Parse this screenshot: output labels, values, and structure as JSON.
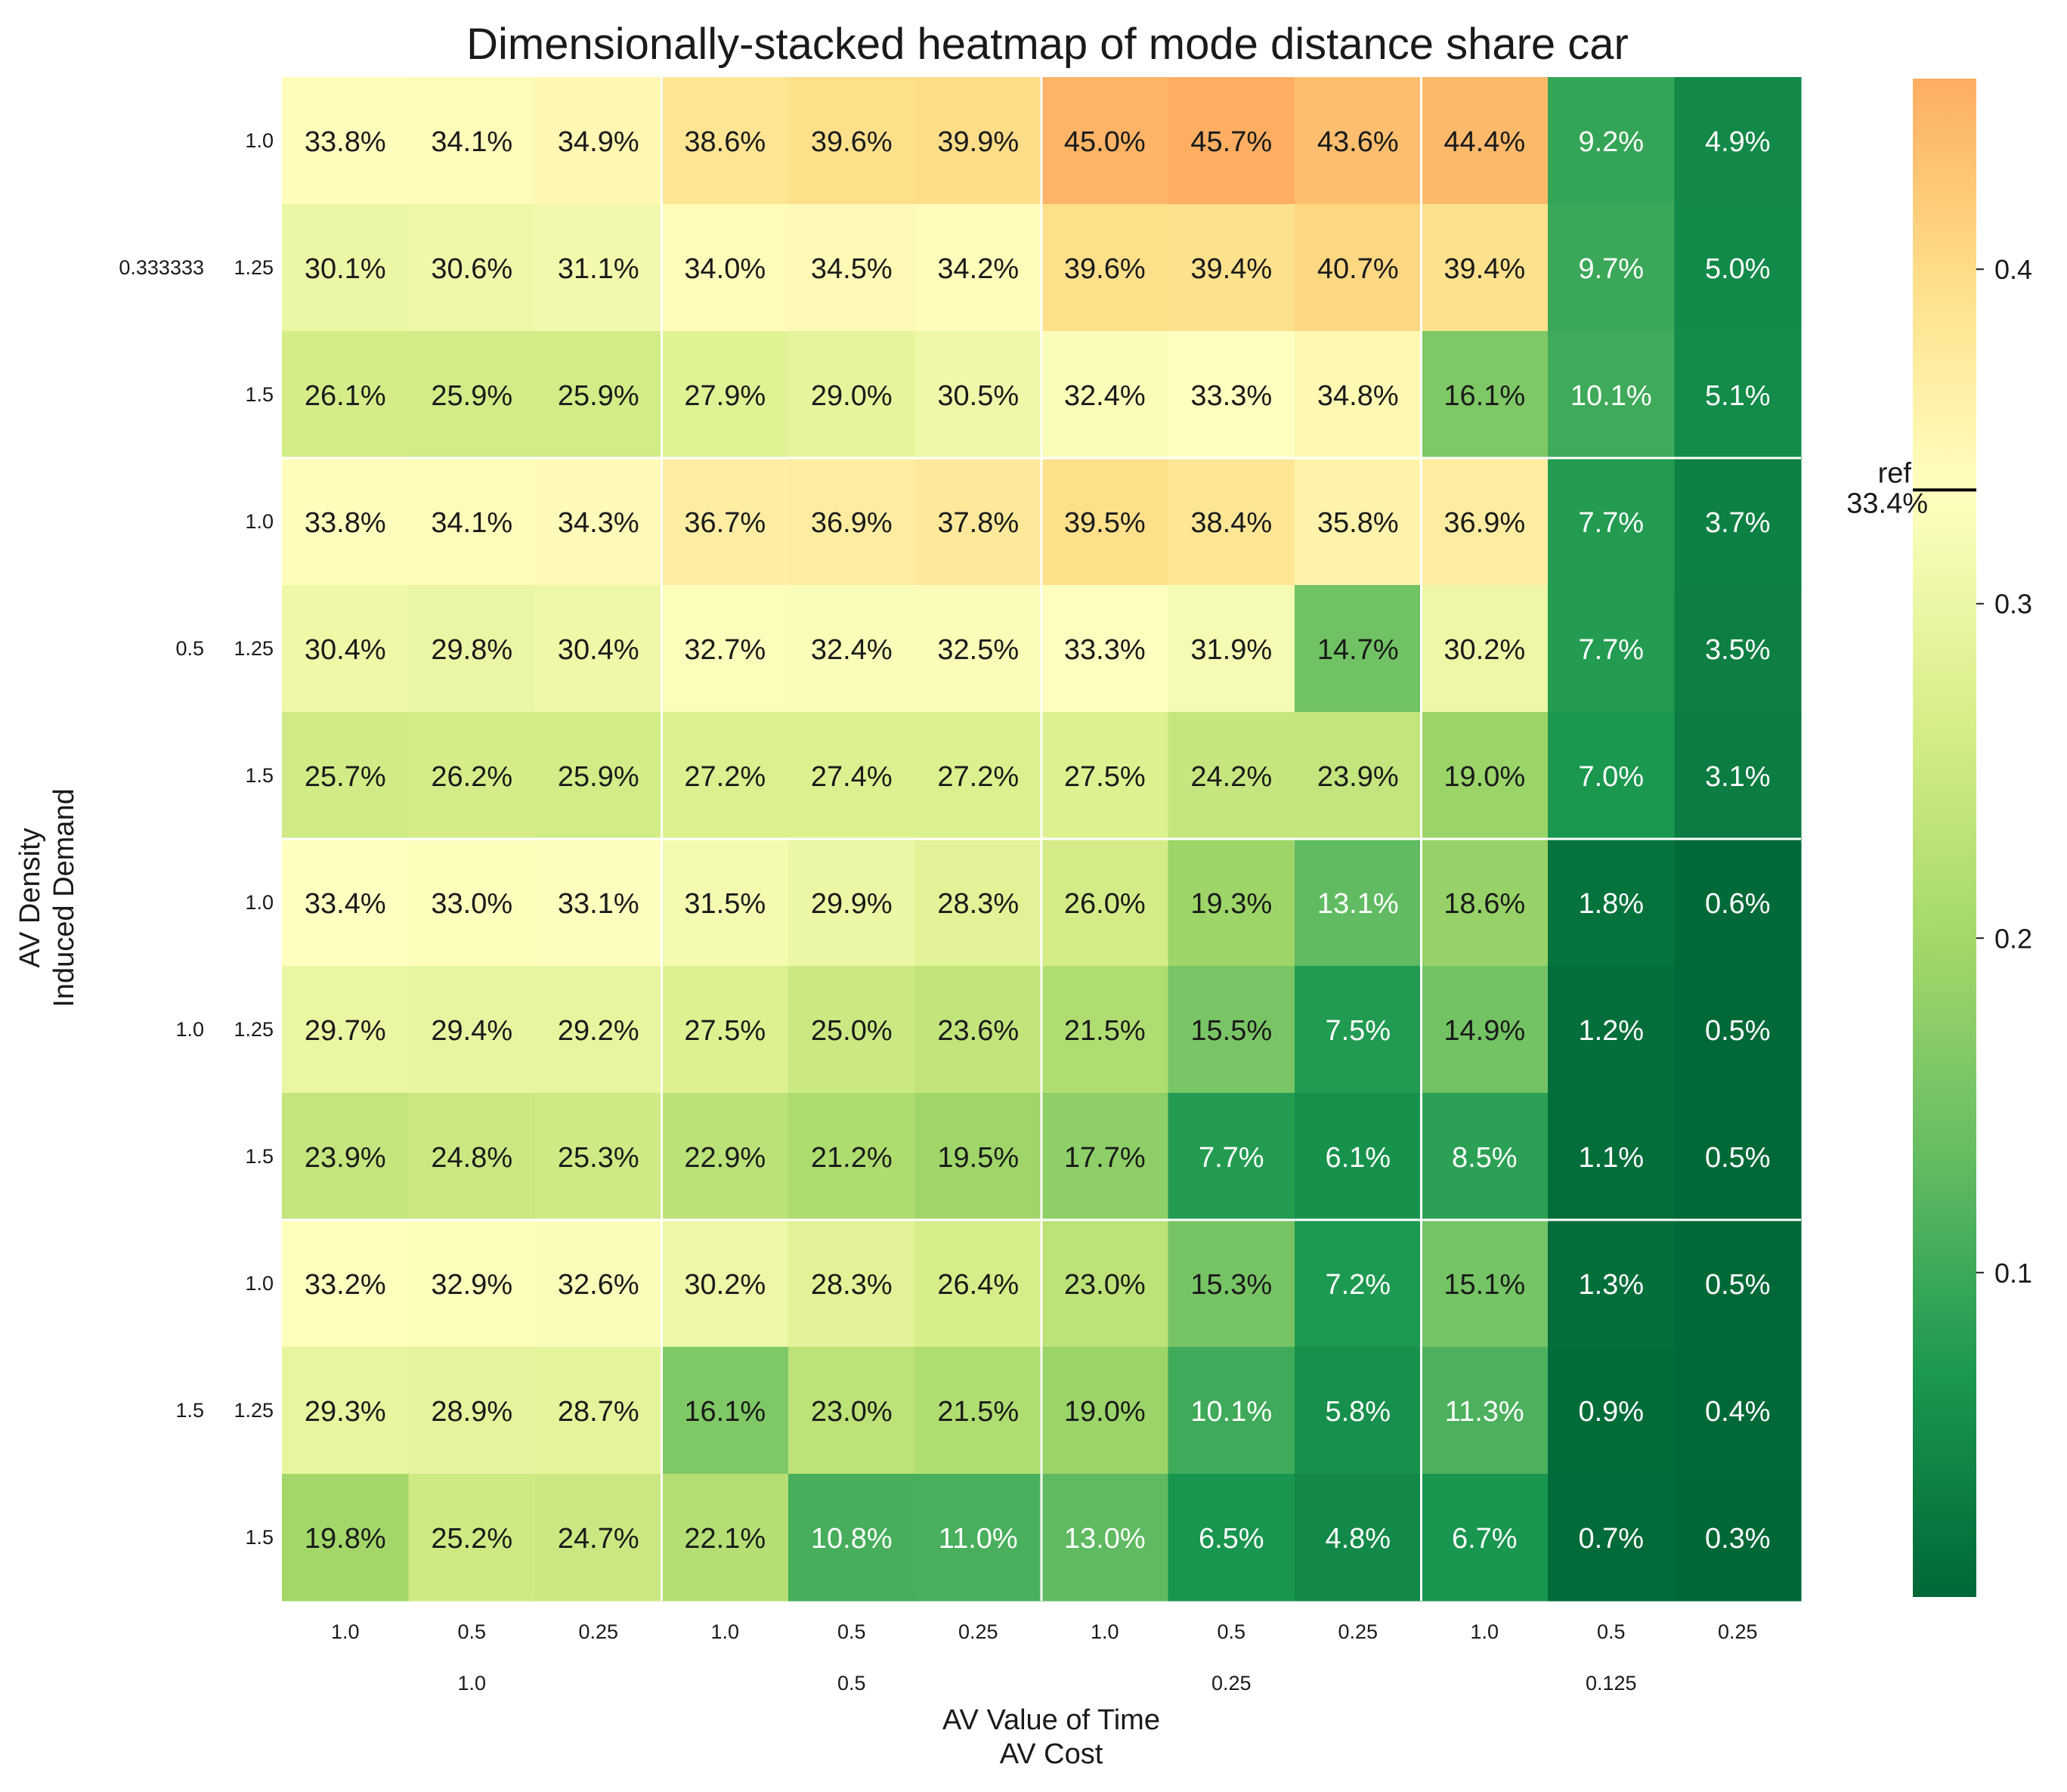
{
  "chart_data": {
    "type": "heatmap",
    "title": "Dimensionally-stacked heatmap of mode distance share car",
    "xlabel_inner": "AV Value of Time",
    "xlabel_outer": "AV Cost",
    "ylabel_outer": "AV Density",
    "ylabel_inner": "Induced Demand",
    "x_outer": [
      "1.0",
      "0.5",
      "0.25",
      "0.125"
    ],
    "x_inner": [
      "1.0",
      "0.5",
      "0.25"
    ],
    "y_outer": [
      "0.333333",
      "0.5",
      "1.0",
      "1.5"
    ],
    "y_inner": [
      "1.0",
      "1.25",
      "1.5"
    ],
    "values": [
      [
        0.338,
        0.341,
        0.349,
        0.386,
        0.396,
        0.399,
        0.45,
        0.457,
        0.436,
        0.444,
        0.092,
        0.049
      ],
      [
        0.301,
        0.306,
        0.311,
        0.34,
        0.345,
        0.342,
        0.396,
        0.394,
        0.407,
        0.394,
        0.097,
        0.05
      ],
      [
        0.261,
        0.259,
        0.259,
        0.279,
        0.29,
        0.305,
        0.324,
        0.333,
        0.348,
        0.161,
        0.101,
        0.051
      ],
      [
        0.338,
        0.341,
        0.343,
        0.367,
        0.369,
        0.378,
        0.395,
        0.384,
        0.358,
        0.369,
        0.077,
        0.037
      ],
      [
        0.304,
        0.298,
        0.304,
        0.327,
        0.324,
        0.325,
        0.333,
        0.319,
        0.147,
        0.302,
        0.077,
        0.035
      ],
      [
        0.257,
        0.262,
        0.259,
        0.272,
        0.274,
        0.272,
        0.275,
        0.242,
        0.239,
        0.19,
        0.07,
        0.031
      ],
      [
        0.334,
        0.33,
        0.331,
        0.315,
        0.299,
        0.283,
        0.26,
        0.193,
        0.131,
        0.186,
        0.018,
        0.006
      ],
      [
        0.297,
        0.294,
        0.292,
        0.275,
        0.25,
        0.236,
        0.215,
        0.155,
        0.075,
        0.149,
        0.012,
        0.005
      ],
      [
        0.239,
        0.248,
        0.253,
        0.229,
        0.212,
        0.195,
        0.177,
        0.077,
        0.061,
        0.085,
        0.011,
        0.005
      ],
      [
        0.332,
        0.329,
        0.326,
        0.302,
        0.283,
        0.264,
        0.23,
        0.153,
        0.072,
        0.151,
        0.013,
        0.005
      ],
      [
        0.293,
        0.289,
        0.287,
        0.161,
        0.23,
        0.215,
        0.19,
        0.101,
        0.058,
        0.113,
        0.009,
        0.004
      ],
      [
        0.198,
        0.252,
        0.247,
        0.221,
        0.108,
        0.11,
        0.13,
        0.065,
        0.048,
        0.067,
        0.007,
        0.003
      ]
    ],
    "colorbar": {
      "min": 0.003,
      "max": 0.457,
      "ticks": [
        0.1,
        0.2,
        0.3,
        0.4
      ],
      "tick_labels": [
        "0.1",
        "0.2",
        "0.3",
        "0.4"
      ],
      "reference_value": 0.334,
      "reference_label_top": "ref",
      "reference_label_bottom": "33.4%",
      "colormap": "RdYlGn (reversed, centered on reference)"
    },
    "colors": {
      "low": "#006837",
      "mid": "#ffffbf",
      "high": "#fdae61",
      "text_dark": "#1a1a1a",
      "text_light": "#ffffff",
      "separator": "#ffffff"
    }
  }
}
